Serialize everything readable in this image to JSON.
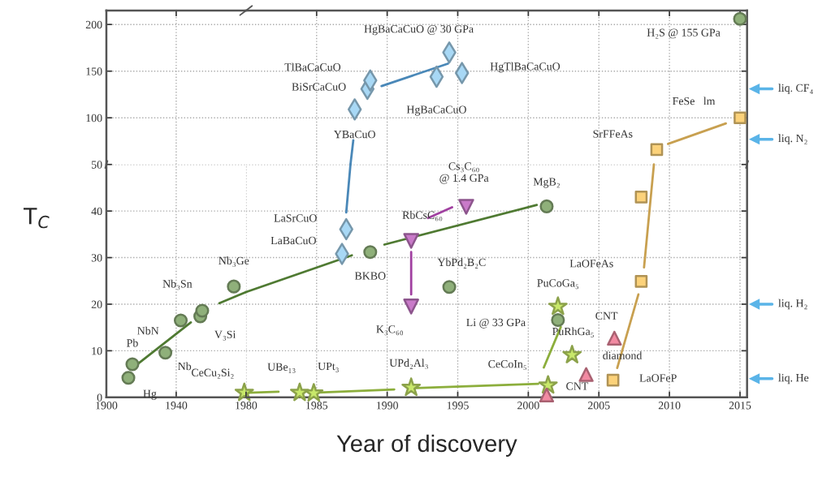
{
  "chart_data": [
    {
      "type": "scatter",
      "xlim": [
        1900,
        1980
      ],
      "ylim": [
        50,
        215
      ],
      "xticks": [
        1900,
        1940
      ],
      "yticks": [
        100,
        150,
        200
      ],
      "tick_labels": "y",
      "grid": true
    },
    {
      "type": "scatter",
      "xlim": [
        1980,
        2015.5
      ],
      "ylim": [
        50,
        215
      ],
      "xticks": [
        1985,
        1990,
        1995,
        2000,
        2005,
        2010,
        2015
      ],
      "yticks": [
        100,
        150,
        200
      ],
      "tick_labels": false,
      "grid": true,
      "series": [
        {
          "type": "line",
          "color": "#4a88b8",
          "x": [
            1987.6,
            1987.4,
            1988,
            1989.6,
            1994.3
          ],
          "values": [
            76,
            50,
            null,
            134,
            158
          ]
        },
        {
          "type": "line",
          "color": "#c8a050",
          "x": [
            2009.9,
            2014
          ],
          "values": [
            72,
            94
          ]
        },
        {
          "marker": "circle",
          "color": "#8fb07a",
          "x": [
            2015
          ],
          "values": [
            206
          ]
        },
        {
          "marker": "diamond",
          "color": "#a8d8f5",
          "x": [
            1987.7,
            1988.6,
            1988.8,
            1993.5,
            1994.4,
            1995.3
          ],
          "values": [
            109,
            131,
            140,
            144,
            170,
            148
          ]
        },
        {
          "marker": "square",
          "color": "#fcd27a",
          "x": [
            2009.1,
            2015
          ],
          "values": [
            66,
            100
          ]
        }
      ],
      "ref_lines": [
        {
          "axis": "y",
          "value": 131,
          "label": "liq. CF₄",
          "color": "#5ab4e8"
        },
        {
          "axis": "y",
          "value": 77,
          "label": "liq. N₂",
          "color": "#5ab4e8"
        }
      ],
      "annotations": [
        {
          "text": "H₂S @ 155 GPa",
          "x": 2015,
          "y": 206
        },
        {
          "text": "YBaCuO",
          "x": 1987.7,
          "y": 109
        },
        {
          "text": "BiSrCaCuO",
          "x": 1988.6,
          "y": 131
        },
        {
          "text": "TlBaCaCuO",
          "x": 1988.8,
          "y": 140
        },
        {
          "text": "HgBaCaCuO",
          "x": 1993.5,
          "y": 144
        },
        {
          "text": "HgBaCaCuO @ 30 GPa",
          "x": 1994.4,
          "y": 170
        },
        {
          "text": "HgTlBaCaCuO",
          "x": 1995.3,
          "y": 148
        },
        {
          "text": "SrFFeAs",
          "x": 2009.1,
          "y": 66
        },
        {
          "text": "FeSe   lm",
          "x": 2015,
          "y": 100
        }
      ]
    },
    {
      "type": "scatter",
      "xlim": [
        1900,
        1980
      ],
      "ylim": [
        0,
        50
      ],
      "xticks": [
        1900,
        1940
      ],
      "yticks": [
        0,
        10,
        20,
        30,
        40,
        50
      ],
      "grid": true,
      "ylabel": "T$_{C}$",
      "series": [
        {
          "type": "line",
          "color": "#4f7a32",
          "x": [
            1917.7,
            1948.4,
            1955,
            1964.7,
            1980
          ],
          "values": [
            7.1,
            16.1,
            null,
            20.2,
            22.6
          ]
        },
        {
          "marker": "circle",
          "color": "#8fb07a",
          "x": [
            1912.6,
            1914.9,
            1933.8,
            1942.6,
            1953.8,
            1954.9,
            1973
          ],
          "values": [
            4.2,
            7.1,
            9.6,
            16.5,
            17.4,
            18.6,
            23.8
          ]
        },
        {
          "marker": "star",
          "color": "#c8e86a",
          "x": [
            1979
          ],
          "values": [
            1.0
          ]
        }
      ],
      "annotations": [
        {
          "text": "Hg",
          "x": 1912.6,
          "y": 4.2
        },
        {
          "text": "Pb",
          "x": 1914.9,
          "y": 7.1
        },
        {
          "text": "Nb",
          "x": 1933.8,
          "y": 9.6
        },
        {
          "text": "NbN",
          "x": 1942.6,
          "y": 16.5
        },
        {
          "text": "V₃Si",
          "x": 1953.8,
          "y": 17.4
        },
        {
          "text": "Nb₃Sn",
          "x": 1954.9,
          "y": 18.6
        },
        {
          "text": "Nb₃Ge",
          "x": 1973,
          "y": 23.8
        },
        {
          "text": "CeCu₂Si₂",
          "x": 1979,
          "y": 1.0
        }
      ]
    },
    {
      "type": "scatter",
      "xlim": [
        1980,
        2015.5
      ],
      "ylim": [
        0,
        50
      ],
      "xticks": [
        1980,
        1985,
        1990,
        1995,
        2000,
        2005,
        2010,
        2015
      ],
      "yticks": [
        0,
        10,
        20,
        30,
        40,
        50
      ],
      "tick_labels": "x",
      "grid": true,
      "xlabel": "Year of discovery",
      "series": [
        {
          "type": "line",
          "color": "#4f7a32",
          "x": [
            1980,
            1987.5,
            1988,
            1989.8,
            2000.6
          ],
          "values": [
            22.6,
            30.5,
            null,
            32.8,
            41.3
          ]
        },
        {
          "type": "line",
          "color": "#4a88b8",
          "x": [
            1987.4,
            1987.1
          ],
          "values": [
            50,
            39.7
          ]
        },
        {
          "type": "line",
          "color": "#a040a0",
          "x": [
            1991.7,
            1991.7,
            1992,
            1992.9,
            1994.6
          ],
          "values": [
            31.2,
            22.1,
            null,
            38.5,
            40.8
          ]
        },
        {
          "type": "line",
          "color": "#8cae3c",
          "x": [
            1980.2,
            1982.3,
            1983,
            1984.8,
            1990.5,
            1991,
            1992,
            2000.7,
            2001,
            2001.1,
            2002.3
          ],
          "values": [
            1.0,
            1.2,
            null,
            1.0,
            1.7,
            null,
            2.0,
            2.9,
            null,
            6.4,
            15.1
          ]
        },
        {
          "type": "line",
          "color": "#c8a050",
          "x": [
            2006.3,
            2007.8,
            2008,
            2008.2,
            2008.9
          ],
          "values": [
            6.3,
            22.1,
            null,
            27.9,
            50
          ]
        },
        {
          "marker": "circle",
          "color": "#8fb07a",
          "x": [
            1988.8,
            2001.3,
            1994.4,
            2002.1
          ],
          "values": [
            31.2,
            41,
            23.7,
            16.6
          ]
        },
        {
          "marker": "diamond",
          "color": "#a8d8f5",
          "x": [
            1986.8,
            1987.1
          ],
          "values": [
            30.8,
            36.1
          ]
        },
        {
          "marker": "triangle_down",
          "color": "#c97ac9",
          "x": [
            1991.7,
            1991.7,
            1995.6
          ],
          "values": [
            33.6,
            19.5,
            40.9
          ]
        },
        {
          "marker": "star",
          "color": "#c8e86a",
          "x": [
            1983.8,
            1984.8,
            1991.7,
            2001.4,
            2002.1,
            2003.1
          ],
          "values": [
            1.0,
            0.9,
            2.1,
            2.6,
            19.5,
            9.1
          ]
        },
        {
          "marker": "triangle",
          "color": "#f28aa2",
          "x": [
            2001.3,
            2004.1,
            2006.1
          ],
          "values": [
            0.5,
            4.9,
            12.7
          ]
        },
        {
          "marker": "square",
          "color": "#fcd27a",
          "x": [
            2006.0,
            2008.0,
            2008.0
          ],
          "values": [
            3.7,
            24.9,
            43
          ]
        }
      ],
      "ref_lines": [
        {
          "axis": "y",
          "value": 20,
          "label": "liq. H₂",
          "color": "#5ab4e8"
        },
        {
          "axis": "y",
          "value": 4,
          "label": "liq. He",
          "color": "#5ab4e8"
        }
      ],
      "annotations": [
        {
          "text": "BKBO",
          "x": 1988.8,
          "y": 31.2
        },
        {
          "text": "MgB₂",
          "x": 2001.3,
          "y": 41
        },
        {
          "text": "YbPd₂B₂C",
          "x": 1994.4,
          "y": 23.7
        },
        {
          "text": "Li @ 33 GPa",
          "x": 2002.1,
          "y": 16.6
        },
        {
          "text": "LaBaCuO",
          "x": 1986.8,
          "y": 30.8
        },
        {
          "text": "LaSrCuO",
          "x": 1987.1,
          "y": 36.1
        },
        {
          "text": "RbCsC₆₀",
          "x": 1991.7,
          "y": 33.6
        },
        {
          "text": "K₃C₆₀",
          "x": 1991.7,
          "y": 19.5
        },
        {
          "text": "Cs₃C₆₀\n@ 1.4 GPa",
          "x": 1995.6,
          "y": 40.9
        },
        {
          "text": "UBe₁₃",
          "x": 1983.8,
          "y": 1.0
        },
        {
          "text": "UPt₃",
          "x": 1984.8,
          "y": 0.9
        },
        {
          "text": "UPd₂Al₃",
          "x": 1991.7,
          "y": 2.1
        },
        {
          "text": "CeCoIn₅",
          "x": 2001.4,
          "y": 2.6
        },
        {
          "text": "PuCoGa₅",
          "x": 2002.1,
          "y": 19.5
        },
        {
          "text": "PuRhGa₅",
          "x": 2003.1,
          "y": 9.1
        },
        {
          "text": "CNT",
          "x": 2001.3,
          "y": 0.5
        },
        {
          "text": "diamond",
          "x": 2004.1,
          "y": 4.9
        },
        {
          "text": "CNT",
          "x": 2006.1,
          "y": 12.7
        },
        {
          "text": "LaOFeP",
          "x": 2006.0,
          "y": 3.7
        },
        {
          "text": "LaOFeAs",
          "x": 2008.0,
          "y": 24.9
        }
      ]
    }
  ]
}
